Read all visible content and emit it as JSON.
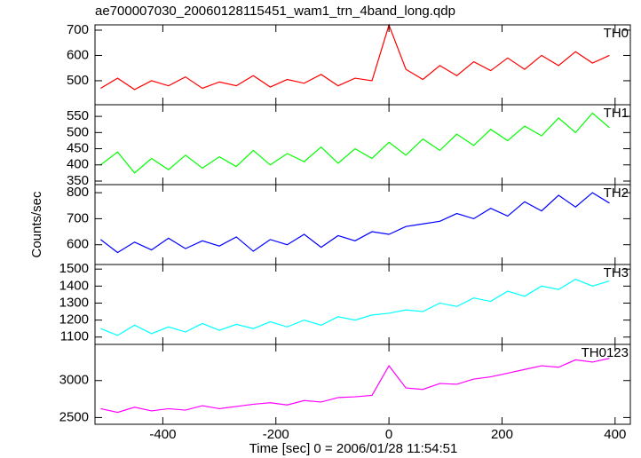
{
  "chart_data": {
    "type": "line",
    "title": "ae700007030_20060128115451_wam1_trn_4band_long.qdp",
    "xlabel": "Time [sec] 0 = 2006/01/28 11:54:51",
    "ylabel": "Counts/sec",
    "xlim": [
      -520,
      427
    ],
    "xticks": [
      -400,
      -200,
      0,
      200,
      400
    ],
    "x": [
      -510,
      -480,
      -450,
      -420,
      -390,
      -360,
      -330,
      -300,
      -270,
      -240,
      -210,
      -180,
      -150,
      -120,
      -90,
      -60,
      -30,
      0,
      30,
      60,
      90,
      120,
      150,
      180,
      210,
      240,
      270,
      300,
      330,
      360,
      390
    ],
    "series": [
      {
        "name": "TH0",
        "color": "#ff0000",
        "ylim": [
          405,
          721
        ],
        "yticks": [
          500,
          600,
          700
        ],
        "values": [
          470,
          510,
          465,
          500,
          480,
          515,
          470,
          495,
          480,
          520,
          475,
          505,
          490,
          525,
          480,
          510,
          500,
          720,
          545,
          505,
          560,
          520,
          575,
          540,
          590,
          545,
          600,
          560,
          615,
          570,
          600
        ]
      },
      {
        "name": "TH1",
        "color": "#00ff00",
        "ylim": [
          339,
          586
        ],
        "yticks": [
          350,
          400,
          450,
          500,
          550
        ],
        "values": [
          400,
          440,
          375,
          420,
          385,
          430,
          390,
          425,
          395,
          445,
          400,
          435,
          410,
          455,
          405,
          450,
          420,
          470,
          430,
          480,
          445,
          495,
          460,
          510,
          475,
          520,
          490,
          545,
          500,
          560,
          515
        ]
      },
      {
        "name": "TH2",
        "color": "#0000ff",
        "ylim": [
          524,
          831
        ],
        "yticks": [
          600,
          700,
          800
        ],
        "values": [
          620,
          570,
          610,
          580,
          625,
          585,
          615,
          595,
          630,
          575,
          620,
          600,
          640,
          590,
          635,
          615,
          650,
          640,
          670,
          680,
          690,
          720,
          700,
          740,
          710,
          765,
          730,
          790,
          745,
          800,
          760
        ]
      },
      {
        "name": "TH3",
        "color": "#00ffff",
        "ylim": [
          1057,
          1527
        ],
        "yticks": [
          1100,
          1200,
          1300,
          1400,
          1500
        ],
        "values": [
          1150,
          1110,
          1170,
          1120,
          1160,
          1130,
          1180,
          1140,
          1175,
          1150,
          1190,
          1160,
          1200,
          1170,
          1220,
          1200,
          1230,
          1240,
          1260,
          1250,
          1300,
          1280,
          1330,
          1310,
          1370,
          1340,
          1400,
          1380,
          1440,
          1400,
          1430
        ]
      },
      {
        "name": "TH0123",
        "color": "#ff00ff",
        "ylim": [
          2409,
          3489
        ],
        "yticks": [
          2500,
          3000
        ],
        "values": [
          2620,
          2570,
          2640,
          2590,
          2620,
          2600,
          2660,
          2620,
          2650,
          2680,
          2700,
          2670,
          2730,
          2710,
          2770,
          2780,
          2800,
          3200,
          2900,
          2880,
          2960,
          2950,
          3020,
          3050,
          3100,
          3150,
          3200,
          3180,
          3280,
          3250,
          3300
        ]
      }
    ]
  }
}
